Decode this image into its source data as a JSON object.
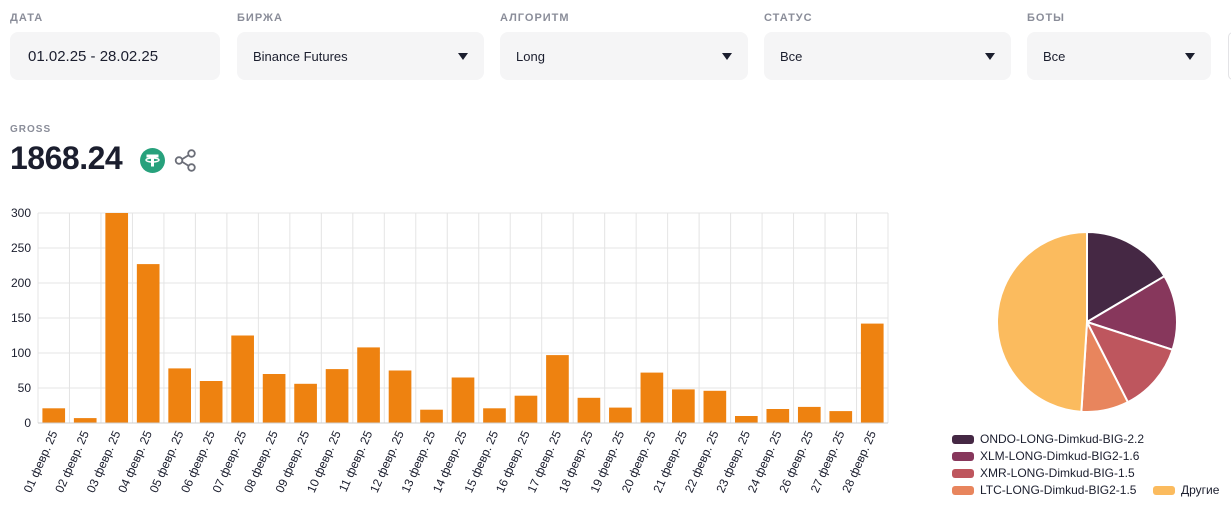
{
  "filters": [
    {
      "key": "date",
      "label": "ДАТА",
      "value": "01.02.25 - 28.02.25",
      "dropdown": false
    },
    {
      "key": "exchange",
      "label": "БИРЖА",
      "value": "Binance Futures",
      "dropdown": true
    },
    {
      "key": "algorithm",
      "label": "АЛГОРИТМ",
      "value": "Long",
      "dropdown": true
    },
    {
      "key": "status",
      "label": "СТАТУС",
      "value": "Все",
      "dropdown": true
    },
    {
      "key": "bots",
      "label": "БОТЫ",
      "value": "Все",
      "dropdown": true
    }
  ],
  "gross": {
    "label": "GROSS",
    "value": "1868.24"
  },
  "icons": {
    "currency": "usdt-tether-icon",
    "share": "share-icon"
  },
  "colors": {
    "bar": "#ee8210",
    "accent_green": "#27a17c"
  },
  "chart_data": [
    {
      "type": "bar",
      "categories": [
        "01 февр. 25",
        "02 февр. 25",
        "03 февр. 25",
        "04 февр. 25",
        "05 февр. 25",
        "06 февр. 25",
        "07 февр. 25",
        "08 февр. 25",
        "09 февр. 25",
        "10 февр. 25",
        "11 февр. 25",
        "12 февр. 25",
        "13 февр. 25",
        "14 февр. 25",
        "15 февр. 25",
        "16 февр. 25",
        "17 февр. 25",
        "18 февр. 25",
        "19 февр. 25",
        "20 февр. 25",
        "21 февр. 25",
        "22 февр. 25",
        "23 февр. 25",
        "24 февр. 25",
        "26 февр. 25",
        "27 февр. 25",
        "28 февр. 25"
      ],
      "values": [
        21,
        7,
        300,
        227,
        78,
        60,
        125,
        70,
        56,
        77,
        108,
        75,
        19,
        65,
        21,
        39,
        97,
        36,
        22,
        72,
        48,
        46,
        10,
        20,
        23,
        17,
        142
      ],
      "ylim": [
        0,
        300
      ],
      "yticks": [
        0,
        50,
        100,
        150,
        200,
        250,
        300
      ],
      "grid": true,
      "color": "#ee8210"
    },
    {
      "type": "pie",
      "series": [
        {
          "name": "ONDO-LONG-Dimkud-BIG-2.2",
          "value": 16.5,
          "color": "#452844"
        },
        {
          "name": "XLM-LONG-Dimkud-BIG2-1.6",
          "value": 13.5,
          "color": "#87375c"
        },
        {
          "name": "XMR-LONG-Dimkud-BIG-1.5",
          "value": 12.5,
          "color": "#be565e"
        },
        {
          "name": "LTC-LONG-Dimkud-BIG2-1.5",
          "value": 8.5,
          "color": "#e8855d"
        },
        {
          "name": "Другие",
          "value": 49,
          "color": "#fbbb5e"
        }
      ],
      "legend": "bottom"
    }
  ]
}
